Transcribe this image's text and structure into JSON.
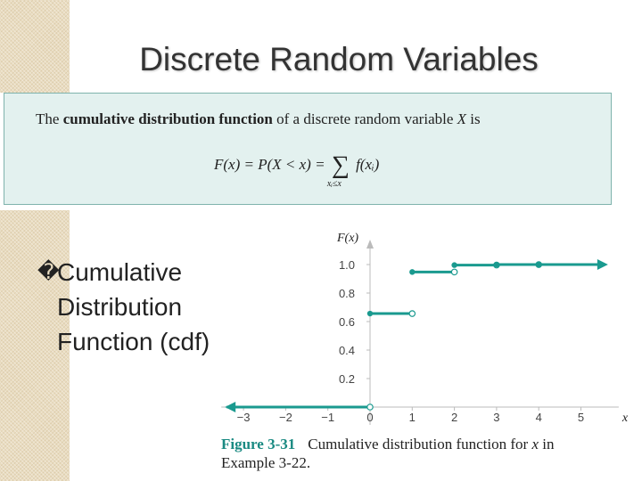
{
  "slide": {
    "title": "Discrete Random Variables",
    "definition": {
      "prefix": "The ",
      "term": "cumulative distribution function",
      "middle": " of a discrete random variable ",
      "variable": "X",
      "suffix": " is",
      "formula_left": "F(x) = P(X < x) = ",
      "sum_symbol": "∑",
      "sum_subscript": "xᵢ≤x",
      "formula_right": " f(xᵢ)"
    },
    "bullet": {
      "glyph": "�",
      "lines": [
        "Cumulative",
        "Distribution",
        "Function (cdf)"
      ]
    },
    "caption": {
      "figure_label": "Figure 3-31",
      "text_before": "Cumulative distribution function for ",
      "variable": "x",
      "text_after": " in",
      "line2": "Example 3-22."
    }
  },
  "colors": {
    "accent": "#1a9a8f",
    "texture": "#e9dcc0",
    "box_bg": "#e3f1ef"
  },
  "chart_data": {
    "type": "line",
    "subtype": "step-cdf",
    "ylabel": "F(x)",
    "xlabel": "x",
    "x_ticks": [
      "−3",
      "−2",
      "−1",
      "0",
      "1",
      "2",
      "3",
      "4",
      "5"
    ],
    "x_tick_values": [
      -3,
      -2,
      -1,
      0,
      1,
      2,
      3,
      4,
      5
    ],
    "y_ticks": [
      "0.2",
      "0.4",
      "0.6",
      "0.8",
      "1.0"
    ],
    "y_tick_values": [
      0.2,
      0.4,
      0.6,
      0.8,
      1.0
    ],
    "xlim": [
      -3.4,
      5.6
    ],
    "ylim": [
      0,
      1.1
    ],
    "segments": [
      {
        "x_start": -3.4,
        "x_end": 0,
        "y": 0,
        "left_closed": false,
        "arrow_left": true
      },
      {
        "x_start": 0,
        "x_end": 1,
        "y": 0.656
      },
      {
        "x_start": 1,
        "x_end": 2,
        "y": 0.9477
      },
      {
        "x_start": 2,
        "x_end": 3,
        "y": 0.9963
      },
      {
        "x_start": 3,
        "x_end": 4,
        "y": 0.9999
      },
      {
        "x_start": 4,
        "x_end": 5.6,
        "y": 1.0,
        "arrow_right": true
      }
    ],
    "grid": false,
    "legend": "none"
  }
}
